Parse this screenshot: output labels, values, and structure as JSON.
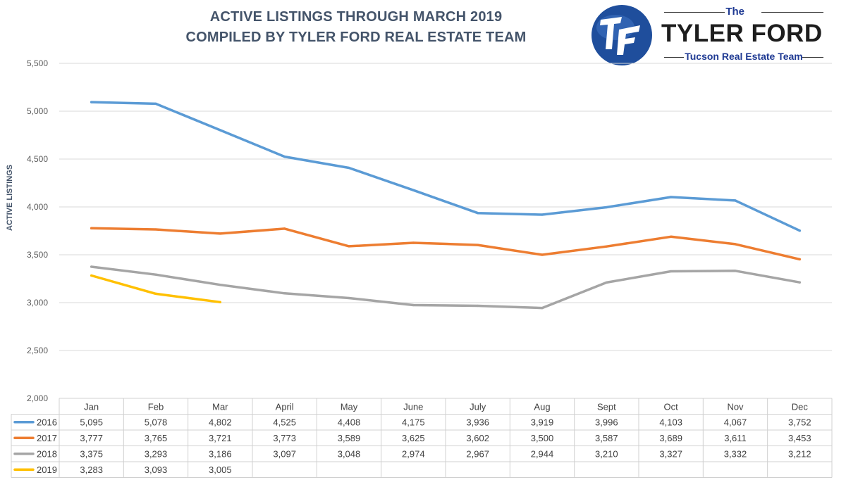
{
  "title": {
    "line1": "ACTIVE LISTINGS THROUGH MARCH 2019",
    "line2": "COMPILED BY TYLER FORD REAL ESTATE TEAM"
  },
  "logo": {
    "monogram": "TF",
    "the": "The",
    "name": "TYLER FORD",
    "tagline": "Tucson Real Estate Team",
    "brand_blue": "#1f4e9c"
  },
  "chart_data": {
    "type": "line",
    "title": "ACTIVE LISTINGS THROUGH MARCH 2019",
    "subtitle": "COMPILED BY TYLER FORD REAL ESTATE TEAM",
    "xlabel": "",
    "ylabel": "ACTIVE LISTINGS",
    "ylim": [
      2000,
      5500
    ],
    "yticks": [
      2000,
      2500,
      3000,
      3500,
      4000,
      4500,
      5000,
      5500
    ],
    "ytick_labels": [
      "2,000",
      "2,500",
      "3,000",
      "3,500",
      "4,000",
      "4,500",
      "5,000",
      "5,500"
    ],
    "grid": true,
    "legend": "data-table-left",
    "categories": [
      "Jan",
      "Feb",
      "Mar",
      "April",
      "May",
      "June",
      "July",
      "Aug",
      "Sept",
      "Oct",
      "Nov",
      "Dec"
    ],
    "series": [
      {
        "name": "2016",
        "color": "#5b9bd5",
        "values": [
          5095,
          5078,
          4802,
          4525,
          4408,
          4175,
          3936,
          3919,
          3996,
          4103,
          4067,
          3752
        ],
        "labels": [
          "5,095",
          "5,078",
          "4,802",
          "4,525",
          "4,408",
          "4,175",
          "3,936",
          "3,919",
          "3,996",
          "4,103",
          "4,067",
          "3,752"
        ]
      },
      {
        "name": "2017",
        "color": "#ed7d31",
        "values": [
          3777,
          3765,
          3721,
          3773,
          3589,
          3625,
          3602,
          3500,
          3587,
          3689,
          3611,
          3453
        ],
        "labels": [
          "3,777",
          "3,765",
          "3,721",
          "3,773",
          "3,589",
          "3,625",
          "3,602",
          "3,500",
          "3,587",
          "3,689",
          "3,611",
          "3,453"
        ]
      },
      {
        "name": "2018",
        "color": "#a5a5a5",
        "values": [
          3375,
          3293,
          3186,
          3097,
          3048,
          2974,
          2967,
          2944,
          3210,
          3327,
          3332,
          3212
        ],
        "labels": [
          "3,375",
          "3,293",
          "3,186",
          "3,097",
          "3,048",
          "2,974",
          "2,967",
          "2,944",
          "3,210",
          "3,327",
          "3,332",
          "3,212"
        ]
      },
      {
        "name": "2019",
        "color": "#ffc000",
        "values": [
          3283,
          3093,
          3005,
          null,
          null,
          null,
          null,
          null,
          null,
          null,
          null,
          null
        ],
        "labels": [
          "3,283",
          "3,093",
          "3,005",
          "",
          "",
          "",
          "",
          "",
          "",
          "",
          "",
          ""
        ]
      }
    ]
  }
}
